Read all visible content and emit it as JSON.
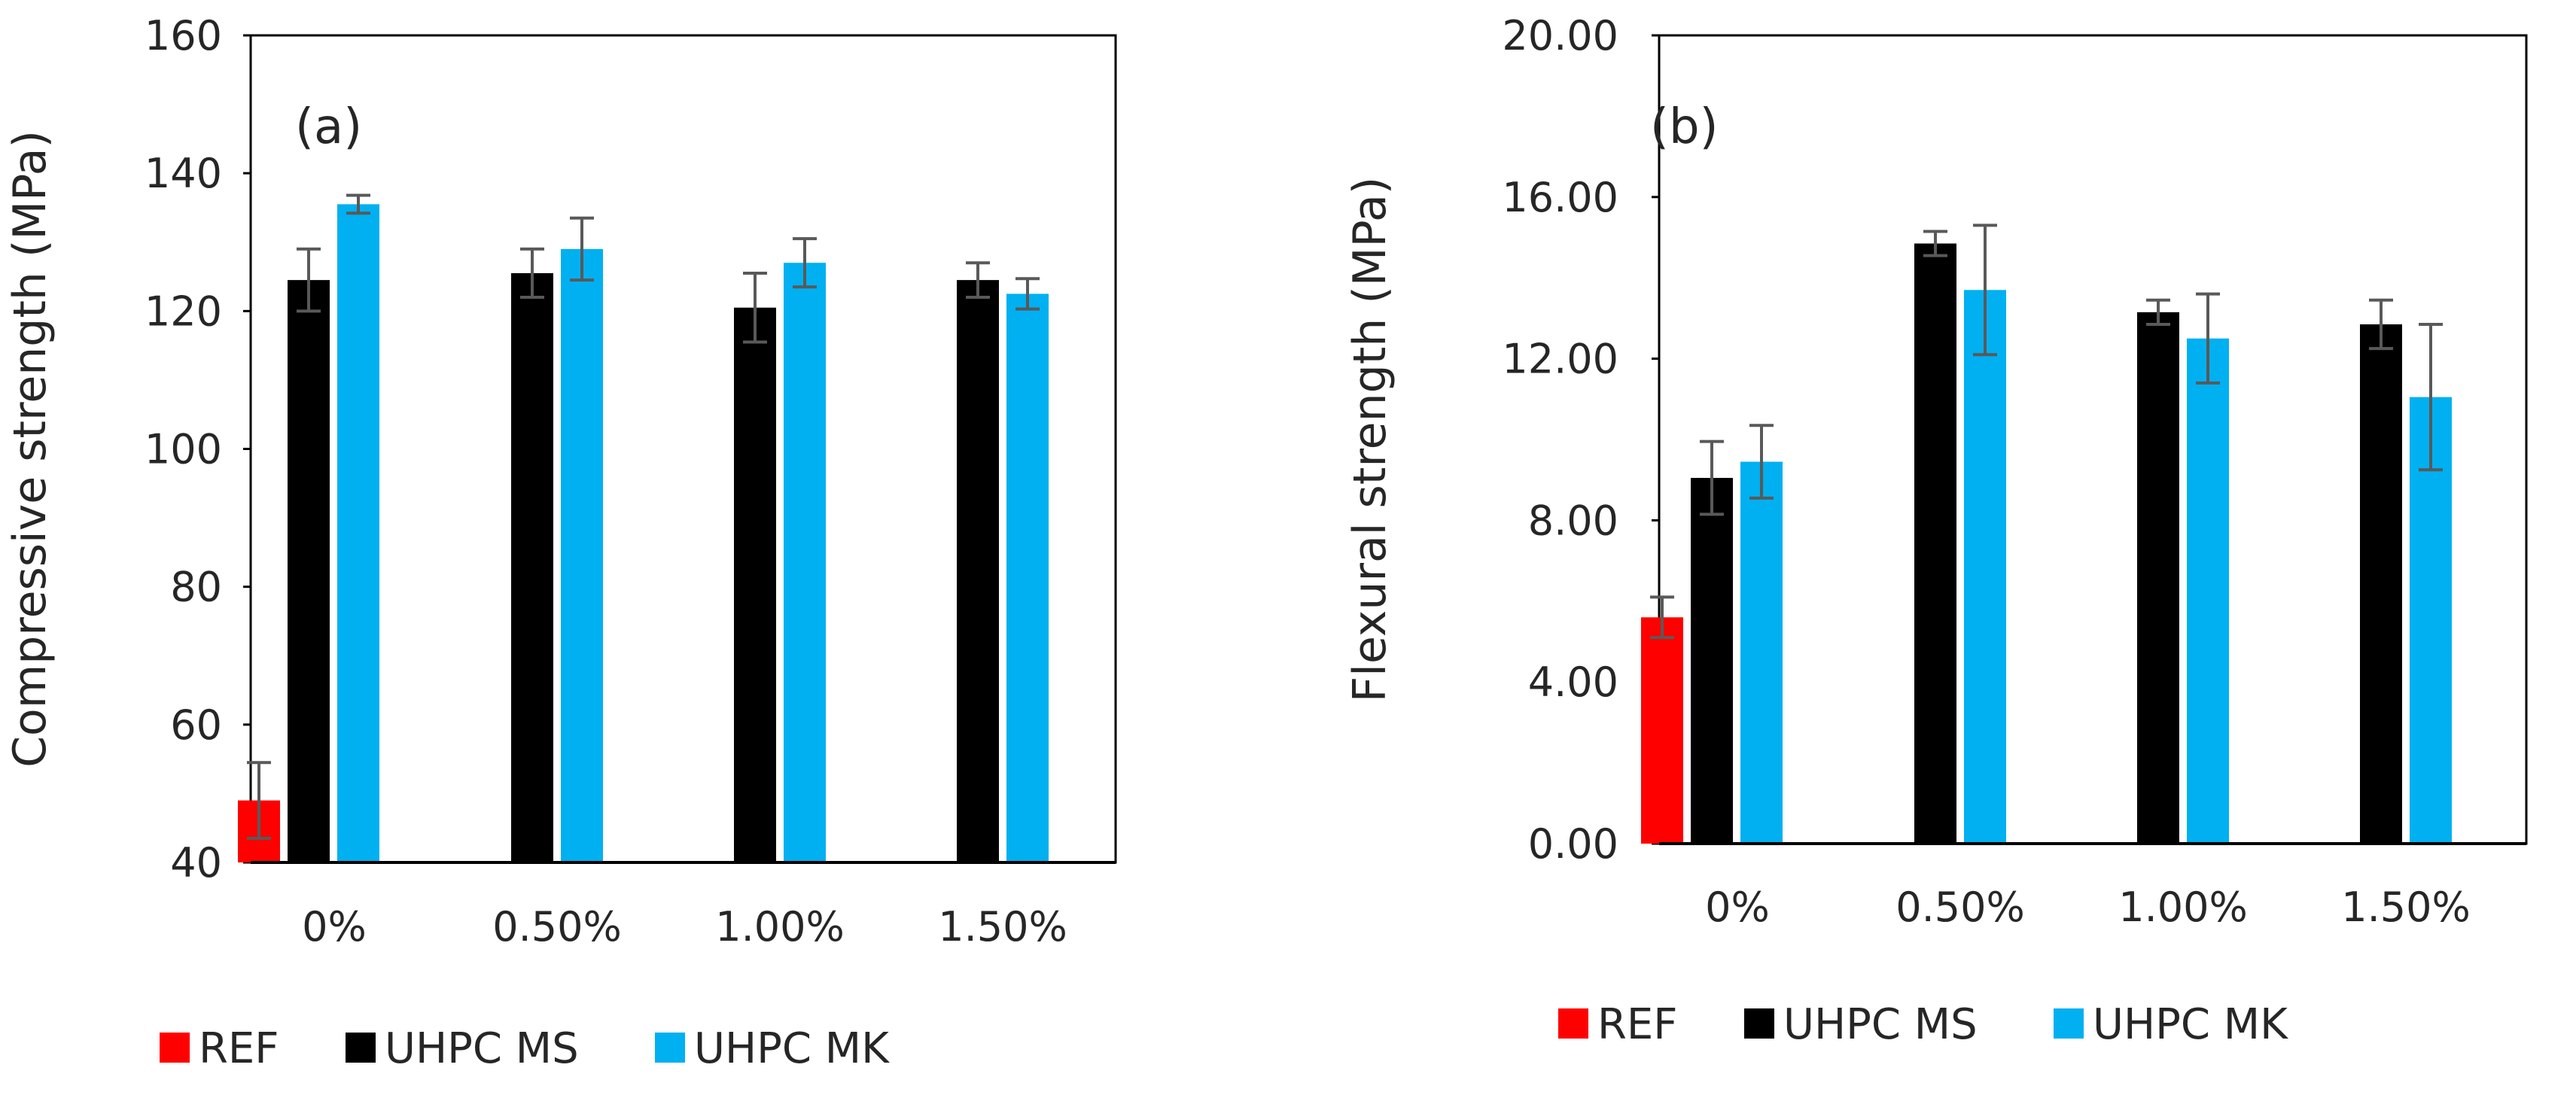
{
  "colors": {
    "ref": "#ff0000",
    "ms": "#000000",
    "mk": "#00b0f0",
    "axis": "#000000",
    "error_bar": "#595959"
  },
  "chart_data": [
    {
      "type": "bar",
      "panel_label": "(a)",
      "title": "",
      "xlabel": "",
      "ylabel": "Compressive strength (MPa)",
      "ylim": [
        40,
        160
      ],
      "yticks": [
        40,
        60,
        80,
        100,
        120,
        140,
        160
      ],
      "ytick_labels": [
        "40",
        "60",
        "80",
        "100",
        "120",
        "140",
        "160"
      ],
      "categories": [
        "0%",
        "0.50%",
        "1.00%",
        "1.50%"
      ],
      "legend_position": "bottom",
      "series": [
        {
          "name": "REF",
          "color_key": "ref",
          "values": [
            49,
            null,
            null,
            null
          ],
          "errors": [
            5.5,
            null,
            null,
            null
          ]
        },
        {
          "name": "UHPC MS",
          "color_key": "ms",
          "values": [
            124.5,
            125.5,
            120.5,
            124.5
          ],
          "errors": [
            4.5,
            3.5,
            5,
            2.5
          ]
        },
        {
          "name": "UHPC MK",
          "color_key": "mk",
          "values": [
            135.5,
            129,
            127,
            122.5
          ],
          "errors": [
            1.3,
            4.5,
            3.5,
            2.2
          ]
        }
      ]
    },
    {
      "type": "bar",
      "panel_label": "(b)",
      "title": "",
      "xlabel": "",
      "ylabel": "Flexural strength (MPa)",
      "ylim": [
        0,
        20
      ],
      "yticks": [
        0,
        4,
        8,
        12,
        16,
        20
      ],
      "ytick_labels": [
        "0.00",
        "4.00",
        "8.00",
        "12.00",
        "16.00",
        "20.00"
      ],
      "categories": [
        "0%",
        "0.50%",
        "1.00%",
        "1.50%"
      ],
      "legend_position": "bottom",
      "series": [
        {
          "name": "REF",
          "color_key": "ref",
          "values": [
            5.6,
            null,
            null,
            null
          ],
          "errors": [
            0.5,
            null,
            null,
            null
          ]
        },
        {
          "name": "UHPC MS",
          "color_key": "ms",
          "values": [
            9.05,
            14.85,
            13.15,
            12.85
          ],
          "errors": [
            0.9,
            0.3,
            0.3,
            0.6
          ]
        },
        {
          "name": "UHPC MK",
          "color_key": "mk",
          "values": [
            9.45,
            13.7,
            12.5,
            11.05
          ],
          "errors": [
            0.9,
            1.6,
            1.1,
            1.8
          ]
        }
      ]
    }
  ]
}
